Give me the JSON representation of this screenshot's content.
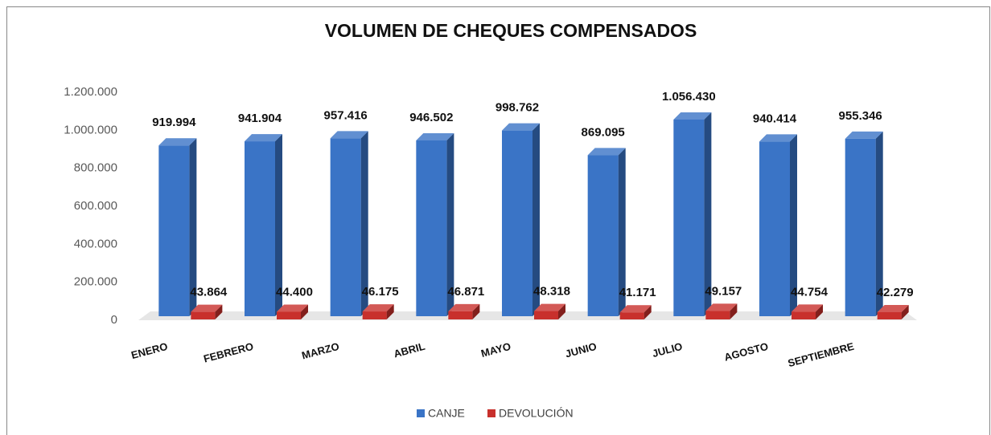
{
  "chart_data": {
    "type": "bar3d",
    "title": "VOLUMEN DE CHEQUES COMPENSADOS",
    "categories": [
      "ENERO",
      "FEBRERO",
      "MARZO",
      "ABRIL",
      "MAYO",
      "JUNIO",
      "JULIO",
      "AGOSTO",
      "SEPTIEMBRE"
    ],
    "series": [
      {
        "name": "CANJE",
        "color": "#3a74c6",
        "values": [
          919994,
          941904,
          957416,
          946502,
          998762,
          869095,
          1056430,
          940414,
          955346
        ],
        "value_labels": [
          "919.994",
          "941.904",
          "957.416",
          "946.502",
          "998.762",
          "869.095",
          "1.056.430",
          "940.414",
          "955.346"
        ]
      },
      {
        "name": "DEVOLUCIÓN",
        "color": "#c8302c",
        "values": [
          43864,
          44400,
          46175,
          46871,
          48318,
          41171,
          49157,
          44754,
          42279
        ],
        "value_labels": [
          "43.864",
          "44.400",
          "46.175",
          "46.871",
          "48.318",
          "41.171",
          "49.157",
          "44.754",
          "42.279"
        ]
      }
    ],
    "ylim": [
      0,
      1200000
    ],
    "yticks": [
      0,
      {
        "value": 200000,
        "label": "200.000"
      },
      {
        "value": 400000,
        "label": "400.000"
      },
      {
        "value": 600000,
        "label": "600.000"
      },
      {
        "value": 800000,
        "label": "800.000"
      },
      {
        "value": 1000000,
        "label": "1.000.000"
      },
      {
        "value": 1200000,
        "label": "1.200.000"
      }
    ],
    "grid": false,
    "legend": "bottom"
  }
}
